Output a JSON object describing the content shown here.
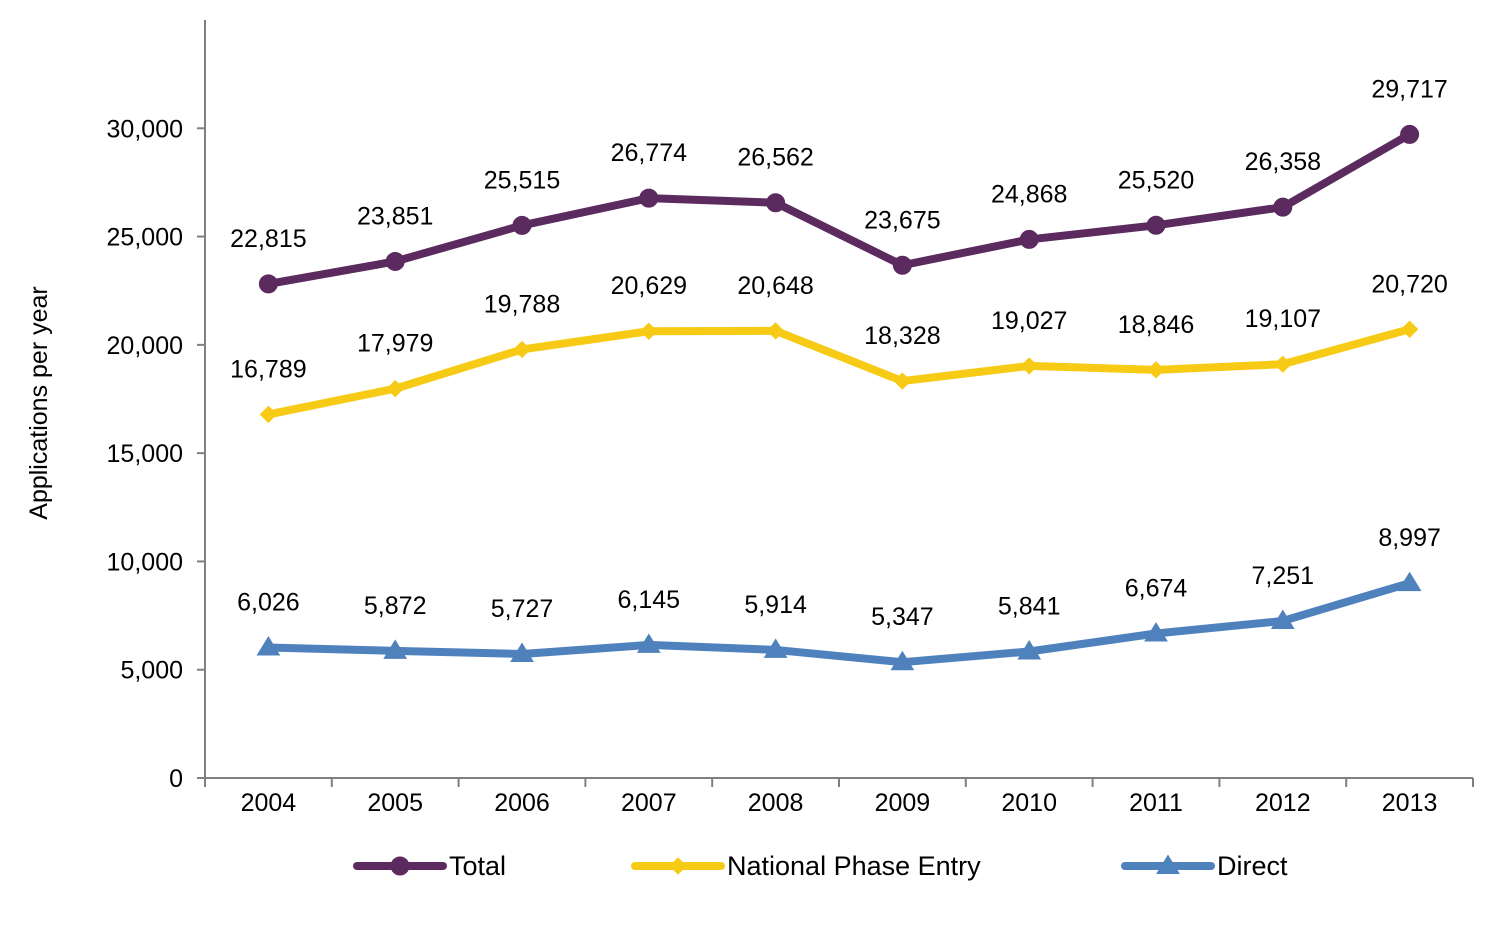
{
  "chart_data": {
    "type": "line",
    "title": "",
    "xlabel": "",
    "ylabel": "Applications per year",
    "categories": [
      "2004",
      "2005",
      "2006",
      "2007",
      "2008",
      "2009",
      "2010",
      "2011",
      "2012",
      "2013"
    ],
    "ylim": [
      0,
      35000
    ],
    "yticks": [
      0,
      5000,
      10000,
      15000,
      20000,
      25000,
      30000
    ],
    "ytick_labels": [
      "0",
      "5,000",
      "10,000",
      "15,000",
      "20,000",
      "25,000",
      "30,000"
    ],
    "grid": false,
    "legend_position": "bottom",
    "series": [
      {
        "name": "Total",
        "color": "#5b2a5f",
        "marker": "circle",
        "values": [
          22815,
          23851,
          25515,
          26774,
          26562,
          23675,
          24868,
          25520,
          26358,
          29717
        ],
        "labels": [
          "22,815",
          "23,851",
          "25,515",
          "26,774",
          "26,562",
          "23,675",
          "24,868",
          "25,520",
          "26,358",
          "29,717"
        ]
      },
      {
        "name": "National Phase Entry",
        "color": "#f7cb15",
        "marker": "diamond",
        "values": [
          16789,
          17979,
          19788,
          20629,
          20648,
          18328,
          19027,
          18846,
          19107,
          20720
        ],
        "labels": [
          "16,789",
          "17,979",
          "19,788",
          "20,629",
          "20,648",
          "18,328",
          "19,027",
          "18,846",
          "19,107",
          "20,720"
        ]
      },
      {
        "name": "Direct",
        "color": "#4f81bd",
        "marker": "triangle",
        "values": [
          6026,
          5872,
          5727,
          6145,
          5914,
          5347,
          5841,
          6674,
          7251,
          8997
        ],
        "labels": [
          "6,026",
          "5,872",
          "5,727",
          "6,145",
          "5,914",
          "5,347",
          "5,841",
          "6,674",
          "7,251",
          "8,997"
        ]
      }
    ]
  }
}
